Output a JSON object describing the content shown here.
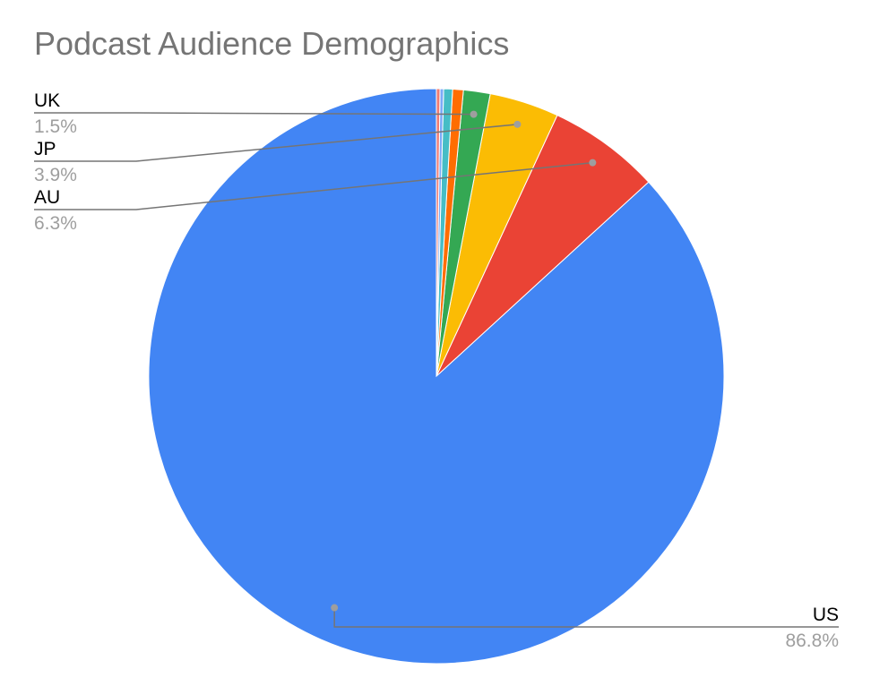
{
  "chart_data": {
    "type": "pie",
    "title": "Podcast Audience Demographics",
    "slices": [
      {
        "label": "US",
        "value": 86.8,
        "pct_label": "86.8%",
        "color": "#4285F4",
        "show_label": true
      },
      {
        "label": "AU",
        "value": 6.3,
        "pct_label": "6.3%",
        "color": "#EA4335",
        "show_label": true
      },
      {
        "label": "JP",
        "value": 3.9,
        "pct_label": "3.9%",
        "color": "#FBBC04",
        "show_label": true
      },
      {
        "label": "UK",
        "value": 1.5,
        "pct_label": "1.5%",
        "color": "#34A853",
        "show_label": true
      },
      {
        "label": "",
        "value": 0.6,
        "pct_label": "",
        "color": "#FF6D01",
        "show_label": false
      },
      {
        "label": "",
        "value": 0.5,
        "pct_label": "",
        "color": "#46BDC6",
        "show_label": false
      },
      {
        "label": "",
        "value": 0.2,
        "pct_label": "",
        "color": "#7BAAF7",
        "show_label": false
      },
      {
        "label": "",
        "value": 0.2,
        "pct_label": "",
        "color": "#F07B72",
        "show_label": false
      }
    ],
    "start_angle": "12 o'clock",
    "direction": "counter-clockwise",
    "label_color": "#000000",
    "pct_color": "#9E9E9E",
    "leader_color": "#757575"
  }
}
